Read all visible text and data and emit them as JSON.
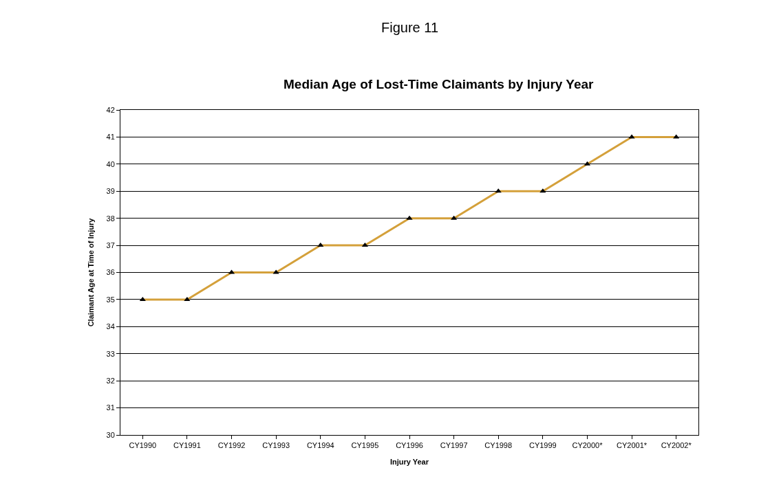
{
  "chart_data": {
    "type": "line",
    "title": "Figure 11",
    "subtitle": "Median Age of Lost-Time Claimants by Injury Year",
    "xlabel": "Injury Year",
    "ylabel": "Claimant Age at Time of Injury",
    "categories": [
      "CY1990",
      "CY1991",
      "CY1992",
      "CY1993",
      "CY1994",
      "CY1995",
      "CY1996",
      "CY1997",
      "CY1998",
      "CY1999",
      "CY2000*",
      "CY2001*",
      "CY2002*"
    ],
    "series": [
      {
        "color": "#d4a03a",
        "values": [
          35,
          35,
          36,
          36,
          37,
          37,
          38,
          38,
          39,
          39,
          40,
          41,
          41
        ]
      }
    ],
    "ylim": [
      30,
      42
    ],
    "yticks": [
      30,
      31,
      32,
      33,
      34,
      35,
      36,
      37,
      38,
      39,
      40,
      41,
      42
    ],
    "grid": "y",
    "marker": "triangle",
    "line_style": "solid"
  }
}
